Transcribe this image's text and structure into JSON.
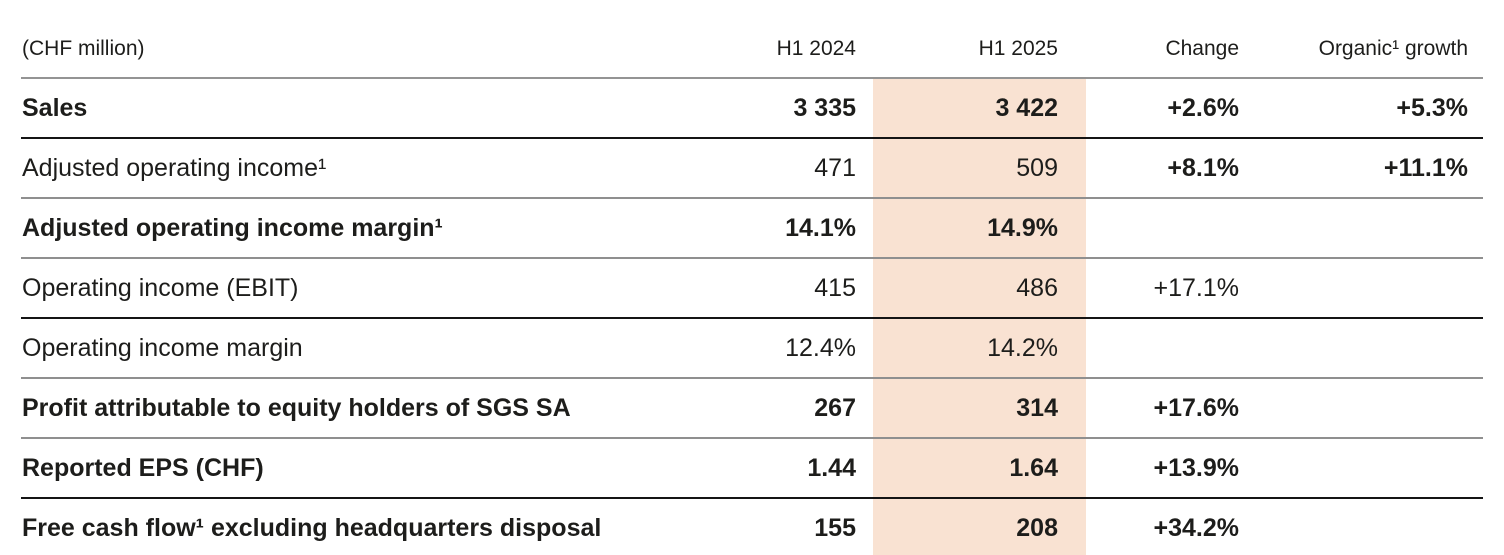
{
  "table": {
    "unit_label": "(CHF million)",
    "highlight_color": "#f9e2d2",
    "columns": [
      "H1 2024",
      "H1 2025",
      "Change",
      "Organic¹ growth"
    ],
    "rows": [
      {
        "label": "Sales",
        "h1_2024": "3 335",
        "h1_2025": "3 422",
        "change": "+2.6%",
        "organic": "+5.3%"
      },
      {
        "label": "Adjusted operating income¹",
        "h1_2024": "471",
        "h1_2025": "509",
        "change": "+8.1%",
        "organic": "+11.1%"
      },
      {
        "label": "Adjusted operating income margin¹",
        "h1_2024": "14.1%",
        "h1_2025": "14.9%",
        "change": "",
        "organic": ""
      },
      {
        "label": "Operating income (EBIT)",
        "h1_2024": "415",
        "h1_2025": "486",
        "change": "+17.1%",
        "organic": ""
      },
      {
        "label": "Operating income margin",
        "h1_2024": "12.4%",
        "h1_2025": "14.2%",
        "change": "",
        "organic": ""
      },
      {
        "label": "Profit attributable to equity holders of SGS SA",
        "h1_2024": "267",
        "h1_2025": "314",
        "change": "+17.6%",
        "organic": ""
      },
      {
        "label": "Reported EPS (CHF)",
        "h1_2024": "1.44",
        "h1_2025": "1.64",
        "change": "+13.9%",
        "organic": ""
      },
      {
        "label": "Free cash flow¹ excluding headquarters disposal",
        "h1_2024": "155",
        "h1_2025": "208",
        "change": "+34.2%",
        "organic": ""
      }
    ]
  }
}
